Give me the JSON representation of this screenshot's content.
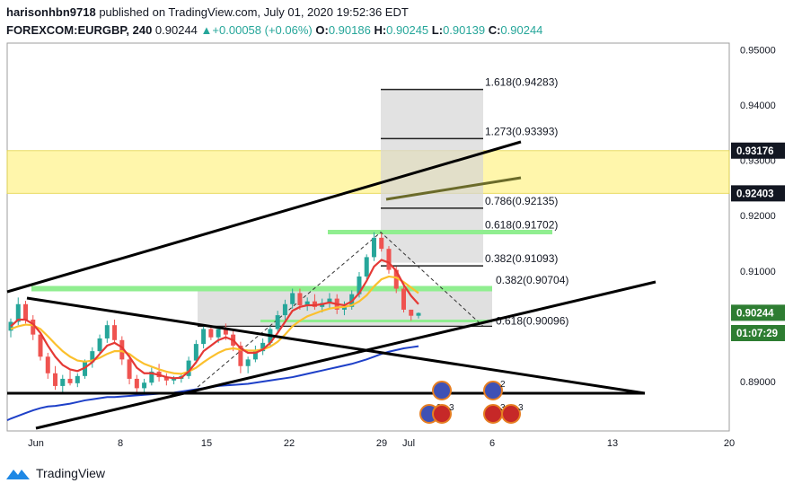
{
  "header": {
    "publisher": "harisonhbn9718",
    "published_text": "published on TradingView.com, July 01, 2020 19:52:36 EDT",
    "symbol": "FOREXCOM:EURGBP, 240",
    "last": "0.90244",
    "change": "+0.00058 (+0.06%)",
    "o_label": "O:",
    "o_value": "0.90186",
    "h_label": "H:",
    "h_value": "0.90245",
    "l_label": "L:",
    "l_value": "0.90139",
    "c_label": "C:",
    "c_value": "0.90244"
  },
  "footer": {
    "brand": "TradingView"
  },
  "colors": {
    "up": "#26a69a",
    "down": "#ef5350",
    "zone": "#fff59d",
    "fib_green": "#90ee90",
    "ema_red": "#e53935",
    "ema_yellow": "#fbc02d",
    "ema_blue": "#1e40c8",
    "price_tag": "#2e7d32"
  },
  "chart_data": {
    "type": "candlestick",
    "title": "FOREXCOM:EURGBP, 240",
    "x_tick_labels": [
      "Jun",
      "8",
      "15",
      "22",
      "29",
      "Jul",
      "6",
      "13",
      "20"
    ],
    "y_ticks": [
      0.89,
      0.91,
      0.92,
      0.93,
      0.94,
      0.95
    ],
    "y_tick_labels": [
      "0.89000",
      "0.91000",
      "0.92000",
      "0.93000",
      "0.94000",
      "0.95000"
    ],
    "ylim": [
      0.8825,
      0.9515
    ],
    "price_tags": [
      {
        "label": "0.93176",
        "value": 0.93176,
        "style": "black"
      },
      {
        "label": "0.92403",
        "value": 0.92403,
        "style": "black"
      },
      {
        "label": "0.90244",
        "value": 0.90244,
        "style": "green"
      },
      {
        "label": "01:07:29",
        "style": "green-countdown"
      }
    ],
    "resistance_zone": {
      "from": 0.92403,
      "to": 0.93176
    },
    "fib_extension_levels": [
      {
        "label": "1.618(0.94283)",
        "value": 0.94283
      },
      {
        "label": "1.273(0.93393)",
        "value": 0.93393
      },
      {
        "label": "0.786(0.92135)",
        "value": 0.92135
      },
      {
        "label": "0.618(0.91702)",
        "value": 0.91702
      },
      {
        "label": "0.382(0.91093)",
        "value": 0.91093
      }
    ],
    "fib_retracement_levels": [
      {
        "label": "0.382(0.90704)",
        "value": 0.90704
      },
      {
        "label": "0.618(0.90096)",
        "value": 0.90096
      }
    ],
    "event_badges": [
      "3",
      "3",
      "2",
      "3",
      "3"
    ],
    "series": [
      {
        "kind": "candles",
        "ohlc": [
          [
            0.8992,
            0.9014,
            0.898,
            0.9008
          ],
          [
            0.9008,
            0.9052,
            0.9002,
            0.904
          ],
          [
            0.904,
            0.9046,
            0.9005,
            0.9012
          ],
          [
            0.9012,
            0.902,
            0.8975,
            0.8985
          ],
          [
            0.8985,
            0.899,
            0.8938,
            0.8945
          ],
          [
            0.8945,
            0.8952,
            0.8905,
            0.8915
          ],
          [
            0.8915,
            0.8928,
            0.8885,
            0.8892
          ],
          [
            0.8892,
            0.8912,
            0.888,
            0.8905
          ],
          [
            0.8905,
            0.892,
            0.8893,
            0.8897
          ],
          [
            0.8897,
            0.8915,
            0.889,
            0.891
          ],
          [
            0.891,
            0.894,
            0.8905,
            0.8935
          ],
          [
            0.8935,
            0.8962,
            0.8925,
            0.8955
          ],
          [
            0.8955,
            0.8985,
            0.8948,
            0.8978
          ],
          [
            0.8978,
            0.901,
            0.897,
            0.9002
          ],
          [
            0.9002,
            0.9012,
            0.897,
            0.8975
          ],
          [
            0.8975,
            0.8982,
            0.893,
            0.894
          ],
          [
            0.894,
            0.8948,
            0.8895,
            0.8905
          ],
          [
            0.8905,
            0.8912,
            0.888,
            0.8888
          ],
          [
            0.8888,
            0.8905,
            0.8878,
            0.8898
          ],
          [
            0.8898,
            0.8925,
            0.8893,
            0.8918
          ],
          [
            0.8918,
            0.8932,
            0.89,
            0.8908
          ],
          [
            0.8908,
            0.8915,
            0.8893,
            0.8902
          ],
          [
            0.8902,
            0.891,
            0.8895,
            0.8905
          ],
          [
            0.8905,
            0.8915,
            0.8898,
            0.891
          ],
          [
            0.891,
            0.8945,
            0.8905,
            0.8938
          ],
          [
            0.8938,
            0.8975,
            0.8932,
            0.8968
          ],
          [
            0.8968,
            0.9002,
            0.896,
            0.8995
          ],
          [
            0.8995,
            0.9002,
            0.8975,
            0.898
          ],
          [
            0.898,
            0.9,
            0.897,
            0.8995
          ],
          [
            0.8995,
            0.9005,
            0.8975,
            0.8985
          ],
          [
            0.8985,
            0.8992,
            0.8955,
            0.8965
          ],
          [
            0.8965,
            0.8972,
            0.8915,
            0.8928
          ],
          [
            0.8928,
            0.8945,
            0.8915,
            0.894
          ],
          [
            0.894,
            0.8965,
            0.8935,
            0.8955
          ],
          [
            0.8955,
            0.8978,
            0.8948,
            0.897
          ],
          [
            0.897,
            0.9,
            0.8965,
            0.8995
          ],
          [
            0.8995,
            0.9028,
            0.899,
            0.902
          ],
          [
            0.902,
            0.9048,
            0.9012,
            0.904
          ],
          [
            0.904,
            0.9068,
            0.9032,
            0.906
          ],
          [
            0.906,
            0.9068,
            0.903,
            0.9038
          ],
          [
            0.9038,
            0.9052,
            0.9028,
            0.9045
          ],
          [
            0.9045,
            0.9058,
            0.903,
            0.9035
          ],
          [
            0.9035,
            0.905,
            0.9025,
            0.9042
          ],
          [
            0.9042,
            0.906,
            0.9032,
            0.905
          ],
          [
            0.905,
            0.9058,
            0.9022,
            0.903
          ],
          [
            0.903,
            0.9045,
            0.902,
            0.9035
          ],
          [
            0.9035,
            0.9065,
            0.903,
            0.9058
          ],
          [
            0.9058,
            0.9098,
            0.9052,
            0.909
          ],
          [
            0.909,
            0.913,
            0.9085,
            0.9125
          ],
          [
            0.9125,
            0.917,
            0.9118,
            0.916
          ],
          [
            0.916,
            0.9168,
            0.9135,
            0.914
          ],
          [
            0.914,
            0.9145,
            0.9095,
            0.9102
          ],
          [
            0.9102,
            0.9108,
            0.906,
            0.9068
          ],
          [
            0.9068,
            0.9075,
            0.9025,
            0.903
          ],
          [
            0.903,
            0.903,
            0.901,
            0.9019
          ],
          [
            0.9019,
            0.9025,
            0.9014,
            0.9024
          ]
        ]
      },
      {
        "kind": "ema",
        "color": "red",
        "values": [
          0.9,
          0.9012,
          0.9012,
          0.9004,
          0.8988,
          0.8965,
          0.8945,
          0.893,
          0.8922,
          0.8919,
          0.8925,
          0.8935,
          0.895,
          0.8965,
          0.897,
          0.8962,
          0.8945,
          0.8925,
          0.8915,
          0.8915,
          0.8912,
          0.8908,
          0.8906,
          0.8907,
          0.8918,
          0.8935,
          0.8955,
          0.8965,
          0.8975,
          0.898,
          0.8975,
          0.896,
          0.8952,
          0.8952,
          0.8958,
          0.897,
          0.8988,
          0.9008,
          0.9028,
          0.9035,
          0.9038,
          0.9038,
          0.904,
          0.9043,
          0.904,
          0.9038,
          0.9045,
          0.906,
          0.9082,
          0.9108,
          0.912,
          0.9115,
          0.91,
          0.9075,
          0.9055,
          0.904
        ]
      },
      {
        "kind": "ema",
        "color": "yellow",
        "values": [
          0.8995,
          0.9,
          0.9003,
          0.9002,
          0.8995,
          0.8982,
          0.8968,
          0.8955,
          0.8945,
          0.8938,
          0.8936,
          0.8938,
          0.8943,
          0.895,
          0.8955,
          0.8955,
          0.895,
          0.894,
          0.8932,
          0.8927,
          0.8922,
          0.8918,
          0.8915,
          0.8914,
          0.8918,
          0.8925,
          0.8935,
          0.8944,
          0.8952,
          0.8958,
          0.896,
          0.8958,
          0.8956,
          0.8956,
          0.8958,
          0.8963,
          0.8972,
          0.8985,
          0.9,
          0.901,
          0.9018,
          0.9023,
          0.9028,
          0.9032,
          0.9034,
          0.9035,
          0.9038,
          0.9045,
          0.9056,
          0.9072,
          0.9085,
          0.909,
          0.9088,
          0.908,
          0.907,
          0.906
        ]
      },
      {
        "kind": "ema",
        "color": "blue",
        "values": [
          0.8833,
          0.8838,
          0.8843,
          0.8848,
          0.8852,
          0.8855,
          0.8856,
          0.8858,
          0.886,
          0.8863,
          0.8866,
          0.8868,
          0.887,
          0.8872,
          0.8872,
          0.8873,
          0.8874,
          0.8875,
          0.8876,
          0.8877,
          0.8878,
          0.8879,
          0.888,
          0.8882,
          0.8884,
          0.8886,
          0.8888,
          0.889,
          0.8892,
          0.8893,
          0.8894,
          0.8895,
          0.8896,
          0.8898,
          0.89,
          0.8902,
          0.8904,
          0.8906,
          0.8908,
          0.8911,
          0.8914,
          0.8917,
          0.892,
          0.8923,
          0.8926,
          0.8929,
          0.8932,
          0.8936,
          0.894,
          0.8945,
          0.895,
          0.8954,
          0.8957,
          0.896,
          0.8962,
          0.8964
        ]
      }
    ]
  }
}
